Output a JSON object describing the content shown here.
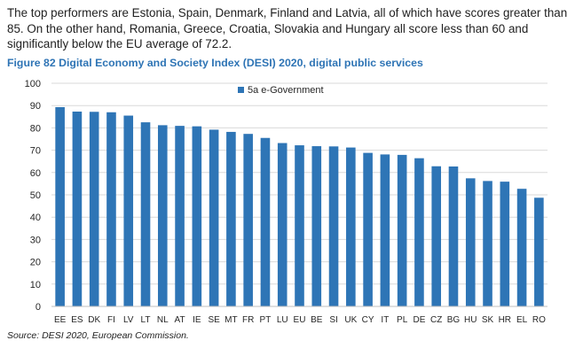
{
  "intro_text": "The top performers are Estonia, Spain, Denmark, Finland and Latvia, all of which have scores greater than 85. On the other hand, Romania, Greece, Croatia, Slovakia and Hungary all score less than 60 and significantly below the EU average of 72.2.",
  "source": "Source: DESI 2020, European Commission.",
  "chart_data": {
    "type": "bar",
    "title": "Figure 82 Digital Economy and Society Index (DESI) 2020, digital public services",
    "xlabel": "",
    "ylabel": "",
    "ylim": [
      0,
      100
    ],
    "yticks": [
      0,
      10,
      20,
      30,
      40,
      50,
      60,
      70,
      80,
      90,
      100
    ],
    "grid": true,
    "legend_position": "top-center",
    "color": "#2e75b6",
    "categories": [
      "EE",
      "ES",
      "DK",
      "FI",
      "LV",
      "LT",
      "NL",
      "AT",
      "IE",
      "SE",
      "MT",
      "FR",
      "PT",
      "LU",
      "EU",
      "BE",
      "SI",
      "UK",
      "CY",
      "IT",
      "PL",
      "DE",
      "CZ",
      "BG",
      "HU",
      "SK",
      "HR",
      "EL",
      "RO"
    ],
    "series": [
      {
        "name": "5a e-Government",
        "values": [
          89.3,
          87.3,
          87.2,
          87.0,
          85.5,
          82.5,
          81.2,
          80.9,
          80.7,
          79.2,
          78.2,
          77.3,
          75.5,
          73.2,
          72.2,
          71.8,
          71.7,
          71.2,
          68.8,
          68.1,
          67.9,
          66.4,
          62.8,
          62.7,
          57.4,
          56.2,
          55.9,
          52.7,
          48.7
        ]
      }
    ]
  }
}
